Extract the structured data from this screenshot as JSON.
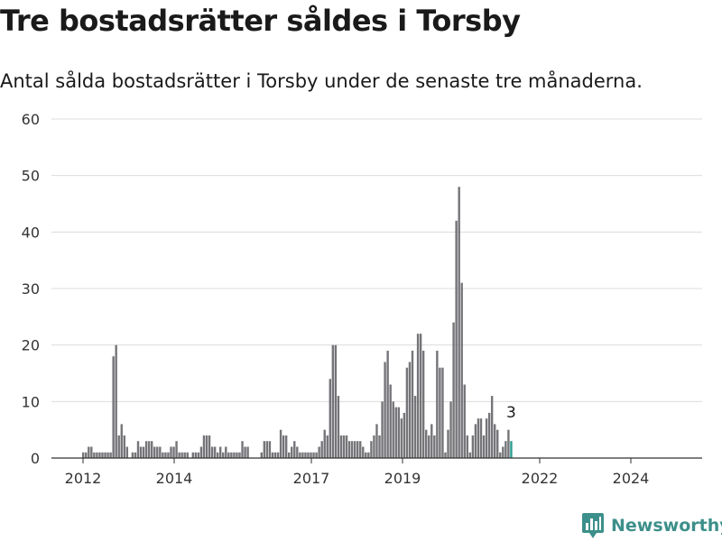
{
  "header": {
    "title": "Tre bostadsrätter såldes i Torsby",
    "subtitle": "Antal sålda bostadsrätter i Torsby under de senaste tre månaderna."
  },
  "brand": {
    "name": "Newsworthy",
    "color": "#3c8f8a"
  },
  "chart_data": {
    "type": "bar",
    "xlabel": "",
    "ylabel": "",
    "ylim": [
      0,
      60
    ],
    "yticks": [
      0,
      10,
      20,
      30,
      40,
      50,
      60
    ],
    "xtick_labels": [
      "2012",
      "2014",
      "2017",
      "2019",
      "2022",
      "2024"
    ],
    "bar_color": "#757478",
    "highlight_color": "#2a9d8f",
    "grid": true,
    "annotation": "3",
    "series": [
      {
        "values": [
          1,
          1,
          2,
          2,
          1,
          1,
          1,
          1,
          1,
          1,
          1,
          18,
          20,
          4,
          6,
          4,
          2,
          0,
          1,
          1,
          3,
          2,
          2,
          3,
          3,
          3,
          2,
          2,
          2,
          1,
          1,
          1,
          2,
          2,
          3,
          1,
          1,
          1,
          1,
          0,
          1,
          1,
          1,
          2,
          4,
          4,
          4,
          2,
          2,
          1,
          2,
          1,
          2,
          1,
          1,
          1,
          1,
          1,
          3,
          2,
          2,
          0,
          0,
          0,
          0,
          1,
          3,
          3,
          3,
          1,
          1,
          1,
          5,
          4,
          4,
          1,
          2,
          3,
          2,
          1,
          1,
          1,
          1,
          1,
          1,
          1,
          2,
          3,
          5,
          4,
          14,
          20,
          20,
          11,
          4,
          4,
          4,
          3,
          3,
          3,
          3,
          3,
          2,
          1,
          1,
          3,
          4,
          6,
          4,
          10,
          17,
          19,
          13,
          10,
          9,
          9,
          7,
          8,
          16,
          17,
          19,
          11,
          22,
          22,
          19,
          5,
          4,
          6,
          4,
          19,
          16,
          16,
          1,
          5,
          10,
          24,
          42,
          48,
          31,
          13,
          4,
          1,
          4,
          6,
          7,
          7,
          4,
          7,
          8,
          11,
          6,
          5,
          1,
          2,
          3,
          5,
          3
        ]
      }
    ]
  }
}
